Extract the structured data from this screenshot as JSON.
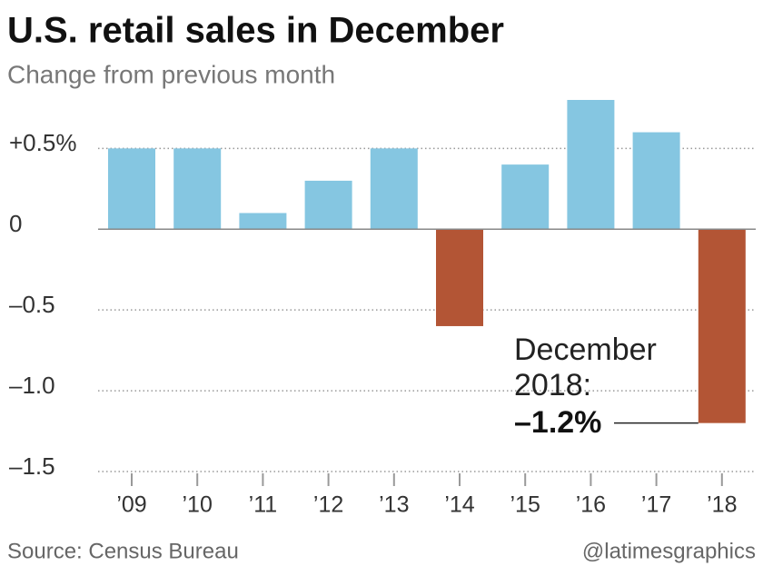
{
  "chart_data": {
    "type": "bar",
    "title": "U.S. retail sales in December",
    "subtitle": "Change from previous month",
    "categories": [
      "’09",
      "’10",
      "’11",
      "’12",
      "’13",
      "’14",
      "’15",
      "’16",
      "’17",
      "’18"
    ],
    "values": [
      0.5,
      0.5,
      0.1,
      0.3,
      0.5,
      -0.6,
      0.4,
      0.8,
      0.6,
      -1.2
    ],
    "value_labels": [
      null,
      null,
      null,
      null,
      null,
      null,
      null,
      null,
      null,
      "–1.2%"
    ],
    "colors": [
      "#85c6e1",
      "#85c6e1",
      "#85c6e1",
      "#85c6e1",
      "#85c6e1",
      "#b35535",
      "#85c6e1",
      "#85c6e1",
      "#85c6e1",
      "#b35535"
    ],
    "ylim": [
      -1.5,
      0.8
    ],
    "yticks": [
      {
        "value": 0.5,
        "label": "+0.5%"
      },
      0,
      {
        "value": -0.5,
        "label": "–0.5"
      },
      {
        "value": -1.0,
        "label": "–1.0"
      },
      {
        "value": -1.5,
        "label": "–1.5"
      }
    ],
    "grid": true,
    "annotation": [
      "December",
      "2018:"
    ],
    "source": "Source: Census Bureau",
    "credit": "@latimesgraphics"
  }
}
